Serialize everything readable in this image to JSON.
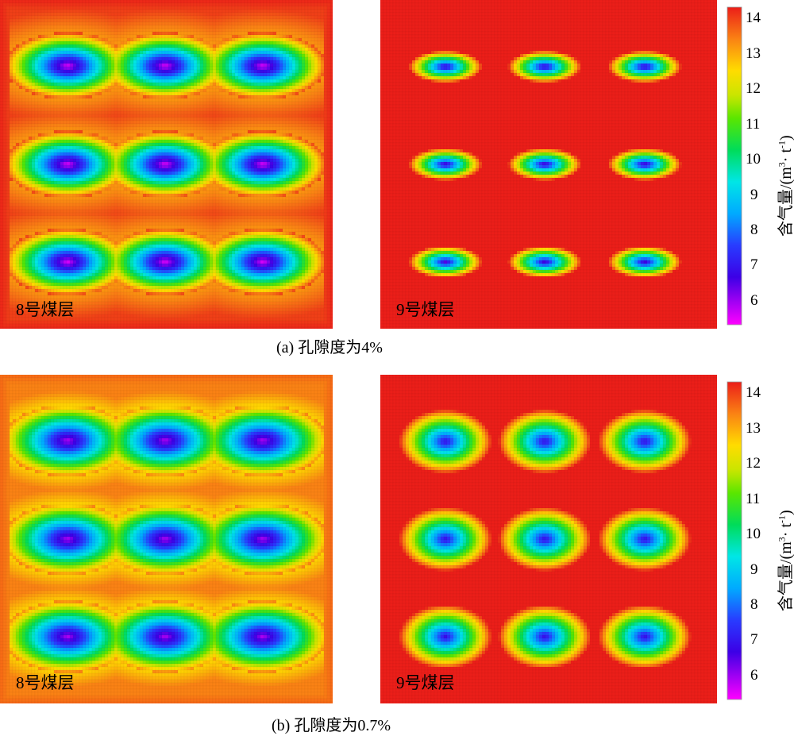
{
  "figure": {
    "caption_a": "(a)  孔隙度为4%",
    "caption_b": "(b)  孔隙度为0.7%",
    "seam_8": "8号煤层",
    "seam_9": "9号煤层",
    "colorbar_label_prefix": "含气量/(m",
    "colorbar_label_sup1": "3",
    "colorbar_label_mid": "· t",
    "colorbar_label_sup2": "-1",
    "colorbar_label_suffix": ")",
    "colorbar_ticks": [
      "14",
      "13",
      "12",
      "11",
      "10",
      "9",
      "8",
      "7",
      "6"
    ]
  },
  "chart_data": [
    {
      "type": "heatmap",
      "panel": "(a) 8号煤层",
      "background_value": 14.0,
      "min_value": 5.5,
      "boreholes_rows": 3,
      "boreholes_cols": 3,
      "zmin": 5.3,
      "zmax": 14.3
    },
    {
      "type": "heatmap",
      "panel": "(a) 9号煤层",
      "background_value": 14.3,
      "min_value": 6.5,
      "boreholes_rows": 3,
      "boreholes_cols": 3,
      "zmin": 5.3,
      "zmax": 14.3
    },
    {
      "type": "heatmap",
      "panel": "(b) 8号煤层",
      "background_value": 13.4,
      "min_value": 5.8,
      "boreholes_rows": 3,
      "boreholes_cols": 3,
      "zmin": 5.3,
      "zmax": 14.3
    },
    {
      "type": "heatmap",
      "panel": "(b) 9号煤层",
      "background_value": 14.3,
      "min_value": 6.8,
      "boreholes_rows": 3,
      "boreholes_cols": 3,
      "zmin": 5.3,
      "zmax": 14.3
    }
  ]
}
